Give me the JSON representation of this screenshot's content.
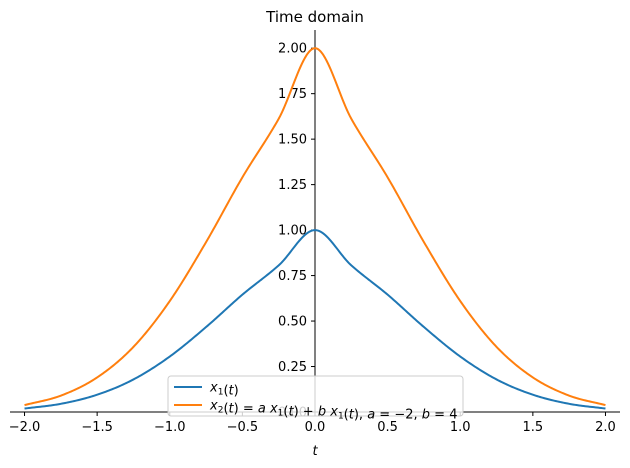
{
  "chart_data": {
    "type": "line",
    "title": "Time domain",
    "xlabel": "t",
    "ylabel": "",
    "xlim": [
      -2.1,
      2.1
    ],
    "ylim": [
      0,
      2.1
    ],
    "xticks": [
      -2.0,
      -1.5,
      -1.0,
      -0.5,
      0.0,
      0.5,
      1.0,
      1.5,
      2.0
    ],
    "xtick_labels": [
      "−2.0",
      "−1.5",
      "−1.0",
      "−0.5",
      "0.0",
      "0.5",
      "1.0",
      "1.5",
      "2.0"
    ],
    "yticks": [
      0.25,
      0.5,
      0.75,
      1.0,
      1.25,
      1.5,
      1.75,
      2.0
    ],
    "ytick_labels": [
      "0.25",
      "0.50",
      "0.75",
      "1.00",
      "1.25",
      "1.50",
      "1.75",
      "2.00"
    ],
    "grid": false,
    "legend_position": "lower-center",
    "series": [
      {
        "name": "x1(t)",
        "legend_parts": [
          [
            "x",
            "it"
          ],
          [
            "1",
            "sub"
          ],
          [
            "(",
            ""
          ],
          [
            "t",
            "it"
          ],
          [
            ")",
            ""
          ]
        ],
        "color": "#1f77b4",
        "x": [
          -2.0,
          -1.75,
          -1.5,
          -1.25,
          -1.0,
          -0.75,
          -0.5,
          -0.25,
          0.0,
          0.25,
          0.5,
          0.75,
          1.0,
          1.25,
          1.5,
          1.75,
          2.0
        ],
        "y": [
          0.019,
          0.045,
          0.095,
          0.179,
          0.305,
          0.467,
          0.645,
          0.806,
          1.0,
          0.806,
          0.645,
          0.467,
          0.305,
          0.179,
          0.095,
          0.045,
          0.019
        ]
      },
      {
        "name": "x2(t) = a x1(t) + b x1(t), a = −2, b = 4",
        "legend_parts": [
          [
            "x",
            "it"
          ],
          [
            "2",
            "sub"
          ],
          [
            "(",
            ""
          ],
          [
            "t",
            "it"
          ],
          [
            ") = ",
            ""
          ],
          [
            "a",
            "it"
          ],
          [
            " ",
            ""
          ],
          [
            "x",
            "it"
          ],
          [
            "1",
            "sub"
          ],
          [
            "(",
            ""
          ],
          [
            "t",
            "it"
          ],
          [
            ") + ",
            ""
          ],
          [
            "b",
            "it"
          ],
          [
            " ",
            ""
          ],
          [
            "x",
            "it"
          ],
          [
            "1",
            "sub"
          ],
          [
            "(",
            ""
          ],
          [
            "t",
            "it"
          ],
          [
            "), ",
            ""
          ],
          [
            "a",
            "it"
          ],
          [
            " = −2, ",
            ""
          ],
          [
            "b",
            "it"
          ],
          [
            " = 4",
            ""
          ]
        ],
        "color": "#ff7f0e",
        "x": [
          -2.0,
          -1.75,
          -1.5,
          -1.25,
          -1.0,
          -0.75,
          -0.5,
          -0.25,
          0.0,
          0.25,
          0.5,
          0.75,
          1.0,
          1.25,
          1.5,
          1.75,
          2.0
        ],
        "y": [
          0.038,
          0.09,
          0.19,
          0.358,
          0.61,
          0.934,
          1.29,
          1.612,
          2.0,
          1.612,
          1.29,
          0.934,
          0.61,
          0.358,
          0.19,
          0.09,
          0.038
        ]
      }
    ],
    "hidden_tick_label": "0.00"
  }
}
